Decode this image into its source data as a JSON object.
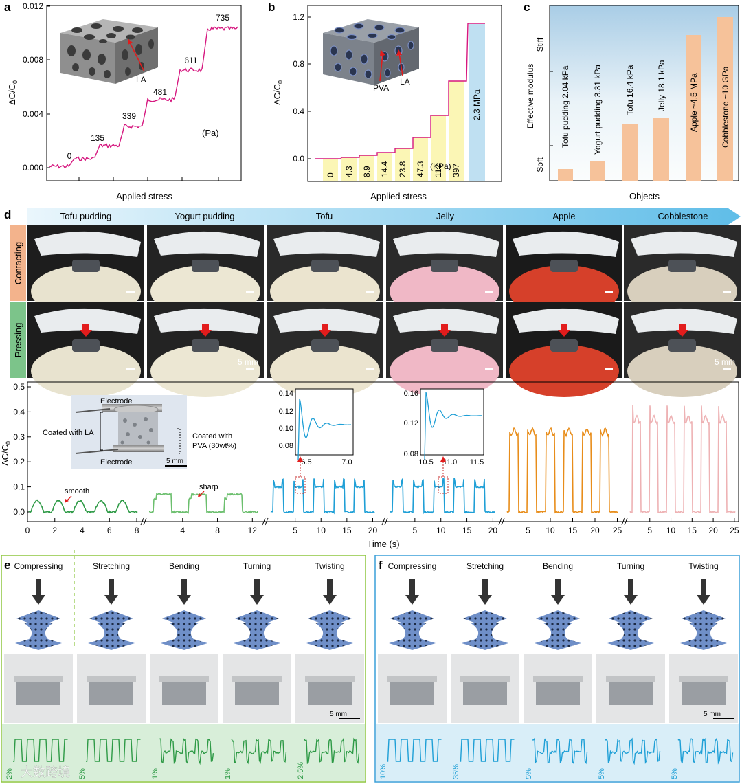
{
  "panel_labels": {
    "a": "a",
    "b": "b",
    "c": "c",
    "d": "d",
    "e": "e",
    "f": "f"
  },
  "panel_a": {
    "ylabel": "ΔC/C",
    "ylabel_sub": "0",
    "xlabel": "Applied stress",
    "yticks": [
      "0.000",
      "0.004",
      "0.008",
      "0.012"
    ],
    "unit": "(Pa)",
    "inset_label": "LA",
    "step_labels": [
      "0",
      "135",
      "339",
      "481",
      "611",
      "735"
    ]
  },
  "panel_b": {
    "ylabel": "ΔC/C",
    "ylabel_sub": "0",
    "xlabel": "Applied stress",
    "yticks": [
      "0.0",
      "0.4",
      "0.8",
      "1.2"
    ],
    "unit": "(KPa)",
    "inset_labels": [
      "PVA",
      "LA"
    ],
    "step_labels": [
      "0",
      "4.3",
      "8.9",
      "14.4",
      "23.8",
      "47.3",
      "112",
      "397"
    ],
    "last_label": "2.3 MPa"
  },
  "panel_c": {
    "ylabel": "Effective modulus",
    "xlabel": "Objects",
    "stiff": "Stiff",
    "soft": "Soft",
    "bars": [
      "Tofu pudding 2.04 kPa",
      "Yogurt pudding 3.31 kPa",
      "Tofu 16.4 kPa",
      "Jelly 18.1 kPa",
      "Apple ~4.5 MPa",
      "Cobblestone ~10 GPa"
    ]
  },
  "panel_d": {
    "objects": [
      "Tofu pudding",
      "Yogurt pudding",
      "Tofu",
      "Jelly",
      "Apple",
      "Cobblestone"
    ],
    "rows": [
      "Contacting",
      "Pressing"
    ],
    "scale_bar": "5 mm"
  },
  "panel_d_chart": {
    "ylabel": "ΔC/C",
    "ylabel_sub": "0",
    "yticks": [
      "0.0",
      "0.1",
      "0.2",
      "0.3",
      "0.4",
      "0.5"
    ],
    "xlabel": "Time (s)",
    "xtick_groups": [
      [
        "0",
        "2",
        "4",
        "6",
        "8"
      ],
      [
        "4",
        "8",
        "12"
      ],
      [
        "5",
        "10",
        "15",
        "20"
      ],
      [
        "5",
        "10",
        "15",
        "20"
      ],
      [
        "5",
        "10",
        "15",
        "20",
        "25"
      ],
      [
        "5",
        "10",
        "15",
        "20",
        "25"
      ]
    ],
    "annotations": {
      "smooth": "smooth",
      "sharp": "sharp"
    },
    "inset_photo": {
      "electrode_top": "Electrode",
      "electrode_bottom": "Electrode",
      "coated_la": "Coated with LA",
      "coated_pva_1": "Coated with",
      "coated_pva_2": "PVA (30wt%)",
      "scale": "5 mm"
    },
    "inset1": {
      "yticks": [
        "0.08",
        "0.10",
        "0.12",
        "0.14"
      ],
      "xticks": [
        "6.5",
        "7.0"
      ]
    },
    "inset2": {
      "yticks": [
        "0.08",
        "0.12",
        "0.16"
      ],
      "xticks": [
        "10.5",
        "11.0",
        "11.5"
      ]
    }
  },
  "panel_e": {
    "modes": [
      "Compressing",
      "Stretching",
      "Bending",
      "Turning",
      "Twisting"
    ],
    "scale_bar": "5 mm",
    "scales": [
      "2%",
      "5%",
      "1%",
      "1%",
      "2.5%"
    ]
  },
  "panel_f": {
    "modes": [
      "Compressing",
      "Stretching",
      "Bending",
      "Turning",
      "Twisting"
    ],
    "scale_bar": "5 mm",
    "scales": [
      "10%",
      "35%",
      "5%",
      "5%",
      "5%"
    ]
  },
  "watermark": "大数跨境",
  "colors": {
    "magenta": "#d6177f",
    "green": "#2e9a46",
    "light_green": "#6cbf6e",
    "blue": "#1e9fd6",
    "orange": "#e88d1a",
    "pink": "#eeb2b4",
    "peach_bar": "#f6c29a",
    "yellow_bar": "#fbf6b5",
    "light_blue_bar": "#bfe0f2",
    "panel_e_border": "#8dc63f",
    "panel_f_border": "#3a9fd8"
  }
}
